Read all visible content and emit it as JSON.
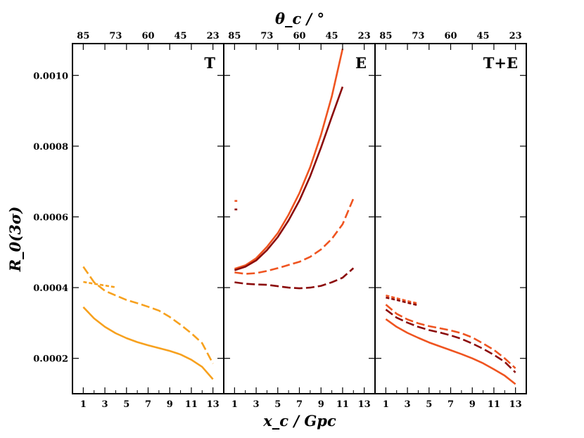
{
  "chart_data": {
    "type": "line",
    "xlabel": "x_c / Gpc",
    "top_xlabel": "θ_c / °",
    "ylabel": "R_0(3σ)",
    "xlim": [
      0,
      14
    ],
    "ylim": [
      0.0001,
      0.00109
    ],
    "xticks": [
      1,
      3,
      5,
      7,
      9,
      11,
      13
    ],
    "xtick_labels": [
      "1",
      "3",
      "5",
      "7",
      "9",
      "11",
      "13"
    ],
    "minor_xticks": [
      2,
      4,
      6,
      8,
      10,
      12
    ],
    "top_ticks": [
      1,
      3,
      5,
      7,
      9,
      11,
      13
    ],
    "top_tick_labels": [
      "85",
      "73",
      "60",
      "45",
      "23"
    ],
    "top_tick_positions": [
      1,
      4,
      7,
      10,
      13
    ],
    "yticks": [
      0.0002,
      0.0004,
      0.0006,
      0.0008,
      0.001
    ],
    "ytick_labels": [
      "0.0002",
      "0.0004",
      "0.0006",
      "0.0008",
      "0.0010"
    ],
    "colors": {
      "orange": "#f7a11e",
      "red_orange": "#ef5420",
      "dark_red": "#8b0a0a"
    },
    "panels": [
      {
        "name": "T",
        "label": "T",
        "series": [
          {
            "name": "T solid",
            "color": "#f7a11e",
            "style": "solid",
            "x": [
              1,
              2,
              3,
              4,
              5,
              6,
              7,
              8,
              9,
              10,
              11,
              12,
              13
            ],
            "y": [
              0.000345,
              0.000313,
              0.000289,
              0.000271,
              0.000257,
              0.000246,
              0.000237,
              0.000229,
              0.000221,
              0.000211,
              0.000196,
              0.000176,
              0.000141
            ]
          },
          {
            "name": "T long-dash",
            "color": "#f7a11e",
            "style": "dashed",
            "x": [
              1,
              2,
              3,
              4,
              5,
              6,
              7,
              8,
              9,
              10,
              11,
              12,
              13
            ],
            "y": [
              0.000459,
              0.000415,
              0.000391,
              0.000378,
              0.000365,
              0.000356,
              0.000346,
              0.000335,
              0.000317,
              0.000295,
              0.000271,
              0.000243,
              0.000185
            ]
          },
          {
            "name": "T short-dash",
            "color": "#f7a11e",
            "style": "dotted",
            "x": [
              1,
              2,
              3,
              4
            ],
            "y": [
              0.000416,
              0.000411,
              0.000406,
              0.000401
            ]
          }
        ]
      },
      {
        "name": "E",
        "label": "E",
        "series": [
          {
            "name": "E solid red-orange",
            "color": "#ef5420",
            "style": "solid",
            "x": [
              1,
              2,
              3,
              4,
              5,
              6,
              7,
              8,
              9,
              10,
              11
            ],
            "y": [
              0.000453,
              0.000463,
              0.000483,
              0.000515,
              0.000554,
              0.000606,
              0.000667,
              0.000741,
              0.000832,
              0.000941,
              0.001075
            ]
          },
          {
            "name": "E solid dark-red",
            "color": "#8b0a0a",
            "style": "solid",
            "x": [
              1,
              2,
              3,
              4,
              5,
              6,
              7,
              8,
              9,
              10,
              11
            ],
            "y": [
              0.000449,
              0.000459,
              0.000477,
              0.000506,
              0.000543,
              0.00059,
              0.000646,
              0.000715,
              0.000796,
              0.000883,
              0.000968
            ]
          },
          {
            "name": "E dashed red-orange",
            "color": "#ef5420",
            "style": "dashed",
            "x": [
              1,
              2,
              3,
              4,
              5,
              6,
              7,
              8,
              9,
              10,
              11,
              12
            ],
            "y": [
              0.000443,
              0.000439,
              0.000441,
              0.000447,
              0.000455,
              0.000464,
              0.000473,
              0.000487,
              0.000508,
              0.000538,
              0.000579,
              0.000652
            ]
          },
          {
            "name": "E dashed dark-red",
            "color": "#8b0a0a",
            "style": "dashed",
            "x": [
              1,
              2,
              3,
              4,
              5,
              6,
              7,
              8,
              9,
              10,
              11,
              12
            ],
            "y": [
              0.000415,
              0.000411,
              0.000409,
              0.000408,
              0.000404,
              0.0004,
              0.000398,
              0.0004,
              0.000405,
              0.000415,
              0.000428,
              0.000455
            ]
          },
          {
            "name": "E short-dash red-orange",
            "color": "#ef5420",
            "style": "dotted",
            "x": [
              1,
              1.25
            ],
            "y": [
              0.000645,
              0.000645
            ]
          },
          {
            "name": "E short-dash dark-red",
            "color": "#8b0a0a",
            "style": "dotted",
            "x": [
              1,
              1.25
            ],
            "y": [
              0.000621,
              0.000621
            ]
          }
        ]
      },
      {
        "name": "T+E",
        "label": "T+E",
        "series": [
          {
            "name": "T+E solid",
            "color": "#ef5420",
            "style": "solid",
            "x": [
              1,
              2,
              3,
              4,
              5,
              6,
              7,
              8,
              9,
              10,
              11,
              12,
              13
            ],
            "y": [
              0.000311,
              0.000289,
              0.000272,
              0.000258,
              0.000245,
              0.000234,
              0.000223,
              0.000212,
              0.0002,
              0.000186,
              0.000169,
              0.000151,
              0.000127
            ]
          },
          {
            "name": "T+E dashed red-orange",
            "color": "#ef5420",
            "style": "dashed",
            "x": [
              1,
              2,
              3,
              4,
              5,
              6,
              7,
              8,
              9,
              10,
              11,
              12,
              13
            ],
            "y": [
              0.000352,
              0.000326,
              0.00031,
              0.000299,
              0.000291,
              0.000285,
              0.000279,
              0.000271,
              0.000259,
              0.000242,
              0.000224,
              0.0002,
              0.000172
            ]
          },
          {
            "name": "T+E dashed dark-red",
            "color": "#8b0a0a",
            "style": "dashed",
            "x": [
              1,
              2,
              3,
              4,
              5,
              6,
              7,
              8,
              9,
              10,
              11,
              12,
              13
            ],
            "y": [
              0.000338,
              0.000315,
              0.000301,
              0.000289,
              0.00028,
              0.000273,
              0.000265,
              0.000255,
              0.000242,
              0.000227,
              0.00021,
              0.00019,
              0.00016
            ]
          },
          {
            "name": "T+E short-dash red-orange",
            "color": "#ef5420",
            "style": "dotted",
            "x": [
              1,
              2,
              3,
              4
            ],
            "y": [
              0.000378,
              0.00037,
              0.000362,
              0.000355
            ]
          },
          {
            "name": "T+E short-dash dark-red",
            "color": "#8b0a0a",
            "style": "dotted",
            "x": [
              1,
              2,
              3,
              4
            ],
            "y": [
              0.000372,
              0.000365,
              0.000357,
              0.00035
            ]
          }
        ]
      }
    ]
  }
}
